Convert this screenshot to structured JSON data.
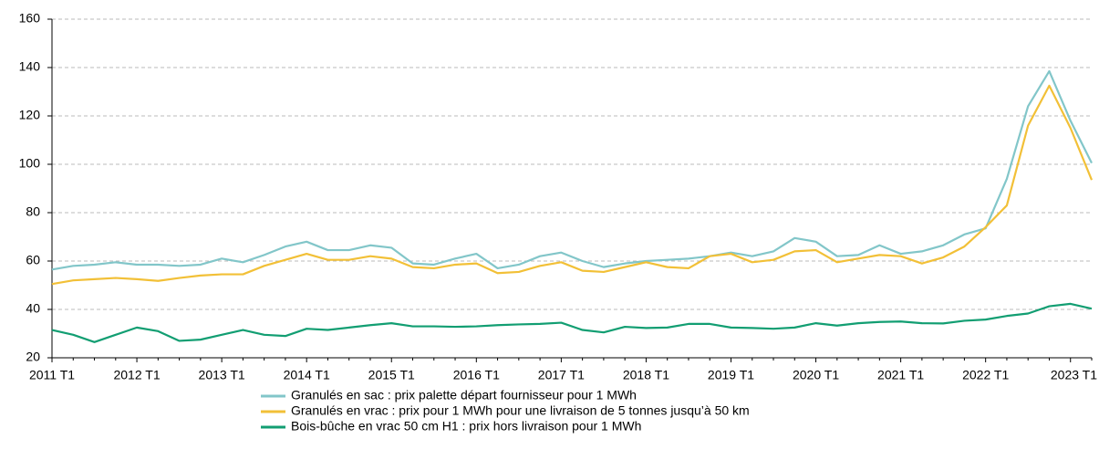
{
  "chart_data": {
    "type": "line",
    "categories": [
      "2011 T1",
      null,
      null,
      null,
      "2012 T1",
      null,
      null,
      null,
      "2013 T1",
      null,
      null,
      null,
      "2014 T1",
      null,
      null,
      null,
      "2015 T1",
      null,
      null,
      null,
      "2016 T1",
      null,
      null,
      null,
      "2017 T1",
      null,
      null,
      null,
      "2018 T1",
      null,
      null,
      null,
      "2019 T1",
      null,
      null,
      null,
      "2020 T1",
      null,
      null,
      null,
      "2021 T1",
      null,
      null,
      null,
      "2022 T1",
      null,
      null,
      null,
      "2023 T1",
      null
    ],
    "series": [
      {
        "name": "Granulés en sac : prix palette départ fournisseur pour 1 MWh",
        "color": "#82c6c9",
        "values": [
          56.5,
          58,
          58.5,
          59.5,
          58.5,
          58.5,
          58,
          58.5,
          61,
          59.5,
          62.5,
          66,
          68,
          64.5,
          64.5,
          66.5,
          65.5,
          59,
          58.5,
          61,
          63,
          57,
          58.5,
          62,
          63.5,
          60,
          57.5,
          59,
          60,
          60.5,
          61,
          62,
          63.5,
          62,
          64,
          69.5,
          68,
          62,
          62.5,
          66.5,
          63,
          64,
          66.5,
          71,
          73.5,
          94,
          124,
          138.5,
          118,
          100.5
        ]
      },
      {
        "name": "Granulés en vrac : prix pour 1 MWh pour une livraison de 5 tonnes jusqu’à 50 km",
        "color": "#f2c037",
        "values": [
          50.5,
          52,
          52.5,
          53,
          52.5,
          51.8,
          53,
          54,
          54.5,
          54.5,
          58,
          60.5,
          63,
          60.5,
          60.5,
          62,
          61,
          57.5,
          57,
          58.5,
          59,
          55,
          55.5,
          58,
          59.5,
          56,
          55.5,
          57.5,
          59.5,
          57.5,
          57,
          62,
          63,
          59.5,
          60.5,
          64,
          64.5,
          59.5,
          61,
          62.5,
          62,
          59,
          61.5,
          66,
          74,
          83,
          116,
          132.5,
          115,
          93.5
        ]
      },
      {
        "name": "Bois-bûche en vrac 50 cm H1 : prix hors livraison pour 1 MWh",
        "color": "#129e72",
        "values": [
          31.5,
          29.5,
          26.5,
          29.5,
          32.5,
          31,
          27,
          27.5,
          29.5,
          31.5,
          29.5,
          29,
          32,
          31.5,
          32.5,
          33.5,
          34.3,
          33,
          33,
          32.8,
          33,
          33.5,
          33.8,
          34,
          34.5,
          31.5,
          30.5,
          32.8,
          32.3,
          32.5,
          34,
          34,
          32.5,
          32.3,
          32,
          32.5,
          34.3,
          33.3,
          34.3,
          34.8,
          35,
          34.3,
          34.2,
          35.3,
          35.8,
          37.3,
          38.3,
          41.3,
          42.3,
          40.3
        ]
      }
    ],
    "ylim": [
      20,
      160
    ],
    "yticks": [
      20,
      40,
      60,
      80,
      100,
      120,
      140,
      160
    ],
    "grid": true
  }
}
